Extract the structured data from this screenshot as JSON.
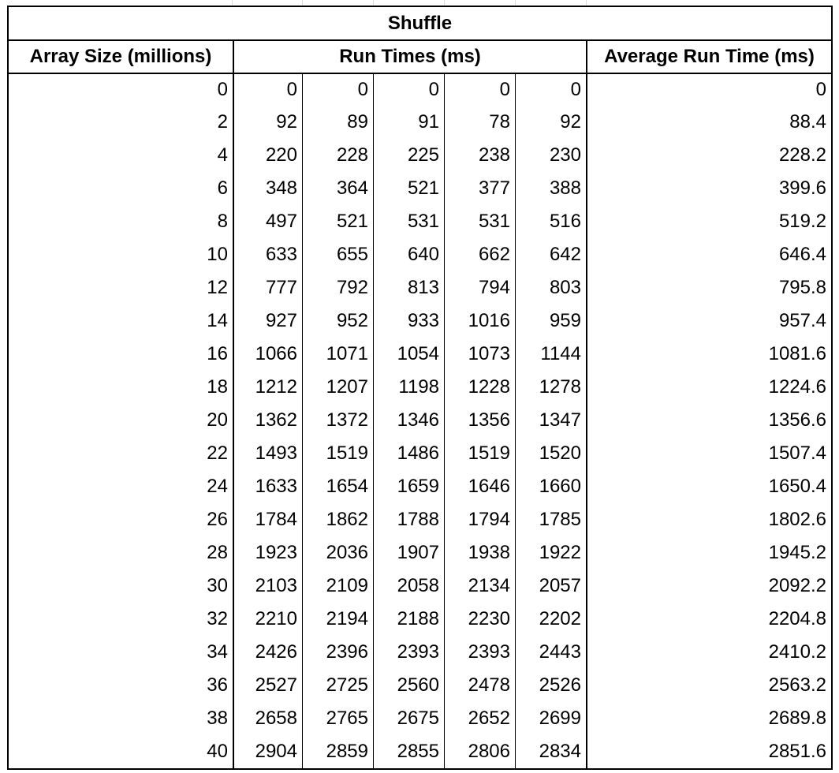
{
  "table": {
    "title": "Shuffle",
    "headers": {
      "size": "Array Size (millions)",
      "runs": "Run Times (ms)",
      "avg": "Average Run Time (ms)"
    },
    "rows": [
      [
        "0",
        "0",
        "0",
        "0",
        "0",
        "0",
        "0"
      ],
      [
        "2",
        "92",
        "89",
        "91",
        "78",
        "92",
        "88.4"
      ],
      [
        "4",
        "220",
        "228",
        "225",
        "238",
        "230",
        "228.2"
      ],
      [
        "6",
        "348",
        "364",
        "521",
        "377",
        "388",
        "399.6"
      ],
      [
        "8",
        "497",
        "521",
        "531",
        "531",
        "516",
        "519.2"
      ],
      [
        "10",
        "633",
        "655",
        "640",
        "662",
        "642",
        "646.4"
      ],
      [
        "12",
        "777",
        "792",
        "813",
        "794",
        "803",
        "795.8"
      ],
      [
        "14",
        "927",
        "952",
        "933",
        "1016",
        "959",
        "957.4"
      ],
      [
        "16",
        "1066",
        "1071",
        "1054",
        "1073",
        "1144",
        "1081.6"
      ],
      [
        "18",
        "1212",
        "1207",
        "1198",
        "1228",
        "1278",
        "1224.6"
      ],
      [
        "20",
        "1362",
        "1372",
        "1346",
        "1356",
        "1347",
        "1356.6"
      ],
      [
        "22",
        "1493",
        "1519",
        "1486",
        "1519",
        "1520",
        "1507.4"
      ],
      [
        "24",
        "1633",
        "1654",
        "1659",
        "1646",
        "1660",
        "1650.4"
      ],
      [
        "26",
        "1784",
        "1862",
        "1788",
        "1794",
        "1785",
        "1802.6"
      ],
      [
        "28",
        "1923",
        "2036",
        "1907",
        "1938",
        "1922",
        "1945.2"
      ],
      [
        "30",
        "2103",
        "2109",
        "2058",
        "2134",
        "2057",
        "2092.2"
      ],
      [
        "32",
        "2210",
        "2194",
        "2188",
        "2230",
        "2202",
        "2204.8"
      ],
      [
        "34",
        "2426",
        "2396",
        "2393",
        "2393",
        "2443",
        "2410.2"
      ],
      [
        "36",
        "2527",
        "2725",
        "2560",
        "2478",
        "2526",
        "2563.2"
      ],
      [
        "38",
        "2658",
        "2765",
        "2675",
        "2652",
        "2699",
        "2689.8"
      ],
      [
        "40",
        "2904",
        "2859",
        "2855",
        "2806",
        "2834",
        "2851.6"
      ]
    ]
  }
}
